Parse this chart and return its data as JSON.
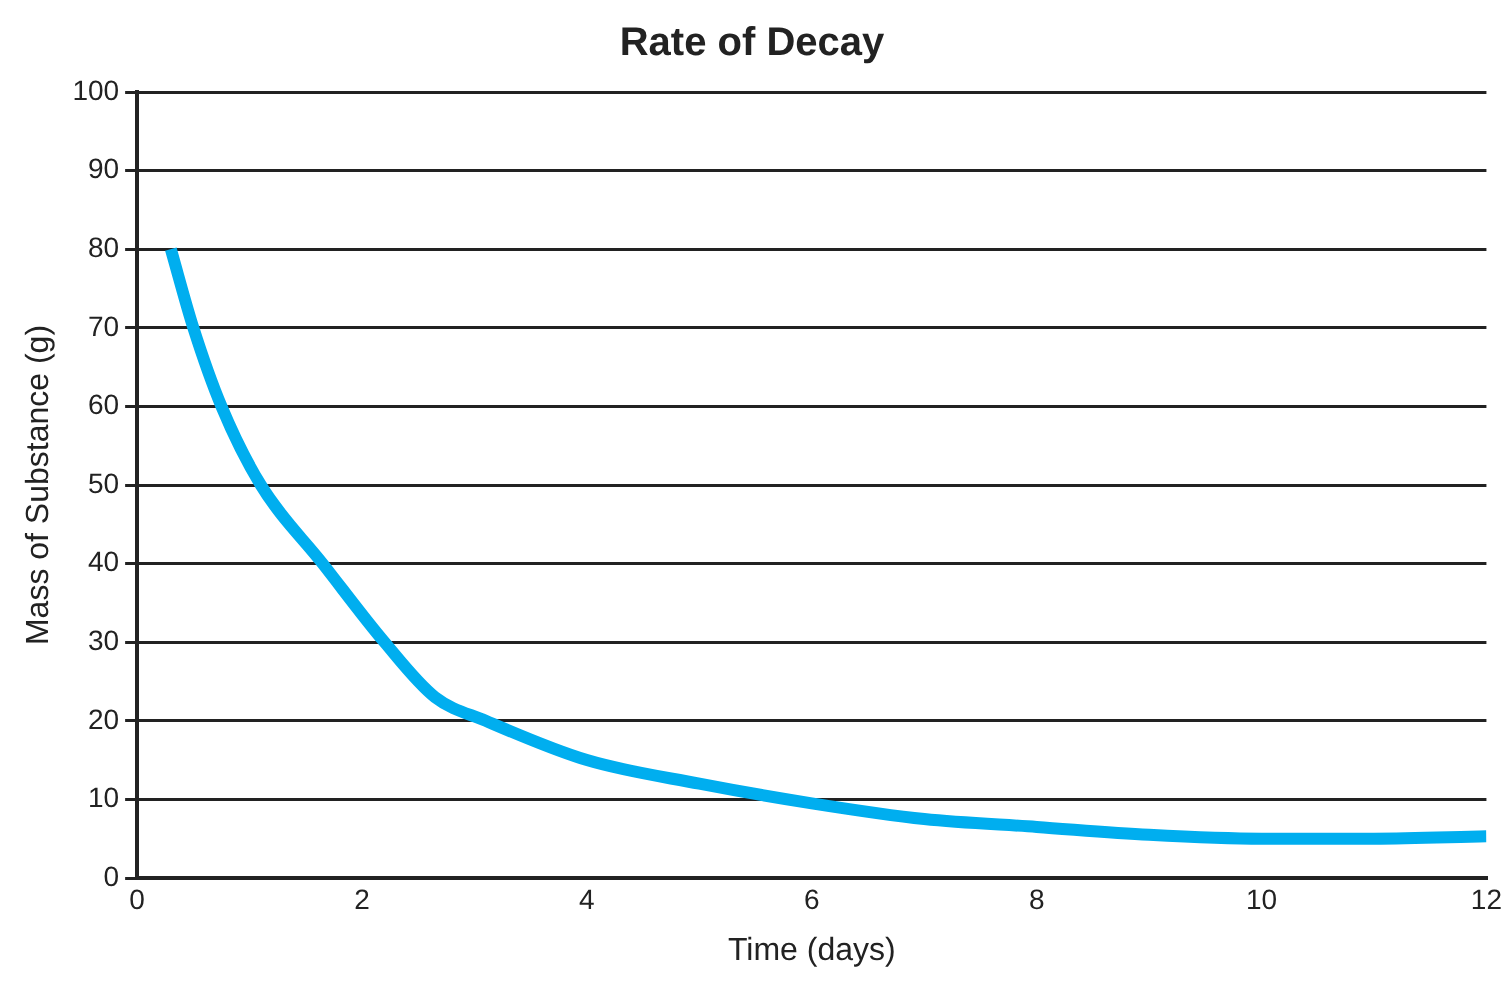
{
  "chart_data": {
    "type": "line",
    "title": "Rate of Decay",
    "xlabel": "Time (days)",
    "ylabel": "Mass of Substance (g)",
    "x": [
      0.3,
      0.5,
      0.75,
      1.1,
      1.65,
      2.2,
      2.65,
      3.1,
      4,
      5,
      6,
      7,
      8,
      9,
      10,
      11,
      12
    ],
    "series": [
      {
        "color": "#00aeef",
        "values": [
          80,
          70,
          60,
          50,
          40,
          30,
          23,
          20,
          15,
          12,
          9.5,
          7.5,
          6.5,
          5.5,
          5,
          5,
          5.3
        ]
      }
    ],
    "xlim": [
      0,
      12
    ],
    "xticks": [
      0,
      2,
      4,
      6,
      8,
      10,
      12
    ],
    "ylim": [
      0,
      100
    ],
    "yticks": [
      0,
      10,
      20,
      30,
      40,
      50,
      60,
      70,
      80,
      90,
      100
    ],
    "grid": "y",
    "legend": false,
    "marker": "none",
    "line_style": "solid"
  }
}
